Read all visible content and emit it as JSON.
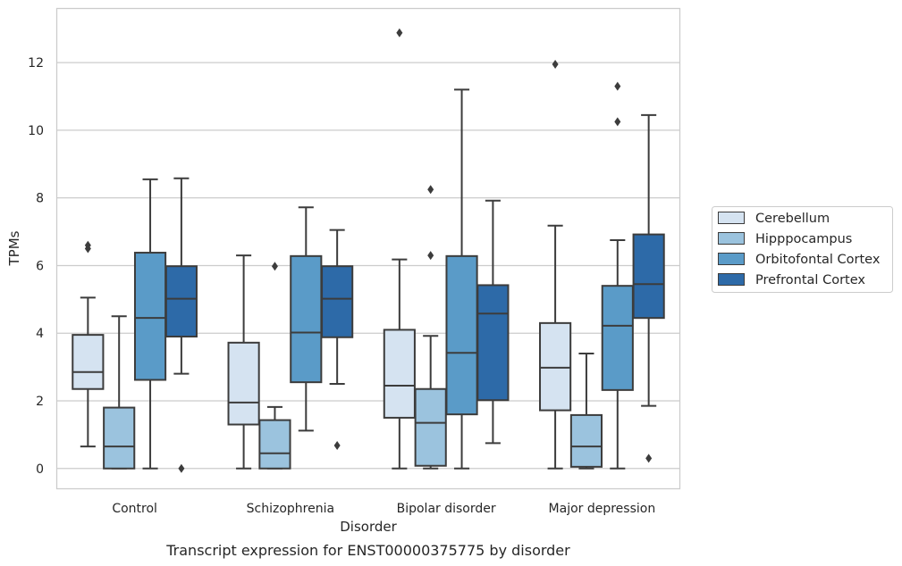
{
  "chart_data": {
    "type": "box",
    "title": "",
    "caption": "Transcript expression for ENST00000375775 by disorder",
    "xlabel": "Disorder",
    "ylabel": "TPMs",
    "ylim": [
      -0.6,
      13.6
    ],
    "yticks": [
      0,
      2,
      4,
      6,
      8,
      10,
      12
    ],
    "grid": "horizontal",
    "legend_position": "right",
    "categories": [
      "Control",
      "Schizophrenia",
      "Bipolar disorder",
      "Major depression"
    ],
    "series": [
      {
        "name": "Cerebellum",
        "color": "#d5e3f1",
        "boxes": [
          {
            "whislo": 0.65,
            "q1": 2.35,
            "med": 2.85,
            "q3": 3.95,
            "whishi": 5.05,
            "fliers": [
              6.5,
              6.6
            ]
          },
          {
            "whislo": 0.0,
            "q1": 1.3,
            "med": 1.95,
            "q3": 3.72,
            "whishi": 6.3,
            "fliers": []
          },
          {
            "whislo": 0.0,
            "q1": 1.5,
            "med": 2.45,
            "q3": 4.1,
            "whishi": 6.18,
            "fliers": [
              12.88
            ]
          },
          {
            "whislo": 0.0,
            "q1": 1.72,
            "med": 2.98,
            "q3": 4.3,
            "whishi": 7.18,
            "fliers": [
              11.95
            ]
          }
        ]
      },
      {
        "name": "Hipppocampus",
        "color": "#9bc3de",
        "boxes": [
          {
            "whislo": 0.0,
            "q1": 0.0,
            "med": 0.65,
            "q3": 1.8,
            "whishi": 4.5,
            "fliers": []
          },
          {
            "whislo": 0.0,
            "q1": 0.0,
            "med": 0.45,
            "q3": 1.43,
            "whishi": 1.82,
            "fliers": [
              5.98
            ]
          },
          {
            "whislo": 0.0,
            "q1": 0.08,
            "med": 1.35,
            "q3": 2.35,
            "whishi": 3.92,
            "fliers": [
              6.3,
              8.25
            ]
          },
          {
            "whislo": 0.0,
            "q1": 0.05,
            "med": 0.65,
            "q3": 1.58,
            "whishi": 3.4,
            "fliers": []
          }
        ]
      },
      {
        "name": "Orbitofontal Cortex",
        "color": "#5a9bc8",
        "boxes": [
          {
            "whislo": 0.0,
            "q1": 2.62,
            "med": 4.45,
            "q3": 6.38,
            "whishi": 8.55,
            "fliers": []
          },
          {
            "whislo": 1.12,
            "q1": 2.55,
            "med": 4.02,
            "q3": 6.28,
            "whishi": 7.72,
            "fliers": []
          },
          {
            "whislo": 0.0,
            "q1": 1.6,
            "med": 3.42,
            "q3": 6.28,
            "whishi": 11.2,
            "fliers": []
          },
          {
            "whislo": 0.0,
            "q1": 2.32,
            "med": 4.22,
            "q3": 5.4,
            "whishi": 6.75,
            "fliers": [
              10.25,
              11.3
            ]
          }
        ]
      },
      {
        "name": "Prefrontal Cortex",
        "color": "#2d6aa8",
        "boxes": [
          {
            "whislo": 2.8,
            "q1": 3.9,
            "med": 5.02,
            "q3": 5.98,
            "whishi": 8.58,
            "fliers": [
              0.0
            ]
          },
          {
            "whislo": 2.5,
            "q1": 3.88,
            "med": 5.02,
            "q3": 5.98,
            "whishi": 7.05,
            "fliers": [
              0.68
            ]
          },
          {
            "whislo": 0.75,
            "q1": 2.02,
            "med": 4.58,
            "q3": 5.42,
            "whishi": 7.92,
            "fliers": []
          },
          {
            "whislo": 1.85,
            "q1": 4.45,
            "med": 5.45,
            "q3": 6.92,
            "whishi": 10.45,
            "fliers": [
              0.3
            ]
          }
        ]
      }
    ]
  }
}
